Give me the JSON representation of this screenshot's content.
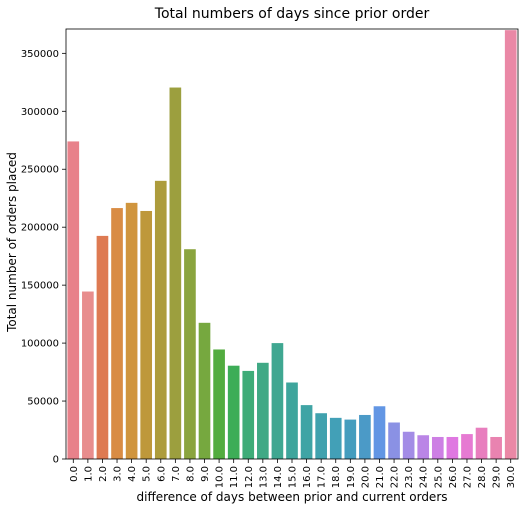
{
  "chart_data": {
    "type": "bar",
    "title": "Total numbers of days since prior order",
    "xlabel": "difference of days between prior and current orders",
    "ylabel": "Total number of orders placed",
    "ylim": [
      0,
      371000
    ],
    "yticks": [
      0,
      50000,
      100000,
      150000,
      200000,
      250000,
      300000,
      350000
    ],
    "ytick_labels": [
      "0",
      "50000",
      "100000",
      "150000",
      "200000",
      "250000",
      "300000",
      "350000"
    ],
    "grid": false,
    "categories": [
      "0.0",
      "1.0",
      "2.0",
      "3.0",
      "4.0",
      "5.0",
      "6.0",
      "7.0",
      "8.0",
      "9.0",
      "10.0",
      "11.0",
      "12.0",
      "13.0",
      "14.0",
      "15.0",
      "16.0",
      "17.0",
      "18.0",
      "19.0",
      "20.0",
      "21.0",
      "22.0",
      "23.0",
      "24.0",
      "25.0",
      "26.0",
      "27.0",
      "28.0",
      "29.0",
      "30.0"
    ],
    "values": [
      274000,
      144500,
      192500,
      216500,
      221000,
      214000,
      240000,
      320500,
      181000,
      117500,
      94500,
      80500,
      76000,
      83000,
      100000,
      66000,
      46500,
      39500,
      35500,
      34000,
      38000,
      45500,
      31500,
      23500,
      20500,
      19000,
      19000,
      21500,
      27000,
      19000,
      370000
    ],
    "colors": [
      "#e8818a",
      "#e88d8d",
      "#de7a52",
      "#d98c44",
      "#d0953e",
      "#be983b",
      "#ad9c3c",
      "#9c9f3e",
      "#8aa43e",
      "#76a83f",
      "#52ac3f",
      "#3dad57",
      "#3eac78",
      "#40a985",
      "#3fa791",
      "#3ea59c",
      "#3fa4a5",
      "#40a2ae",
      "#42a0b7",
      "#459dbe",
      "#4b9ac7",
      "#6296e4",
      "#8a91e4",
      "#a38ce6",
      "#ba85e6",
      "#cd7fe4",
      "#df78e1",
      "#e67ad2",
      "#e87ebe",
      "#e983b0",
      "#ea88a6"
    ]
  }
}
